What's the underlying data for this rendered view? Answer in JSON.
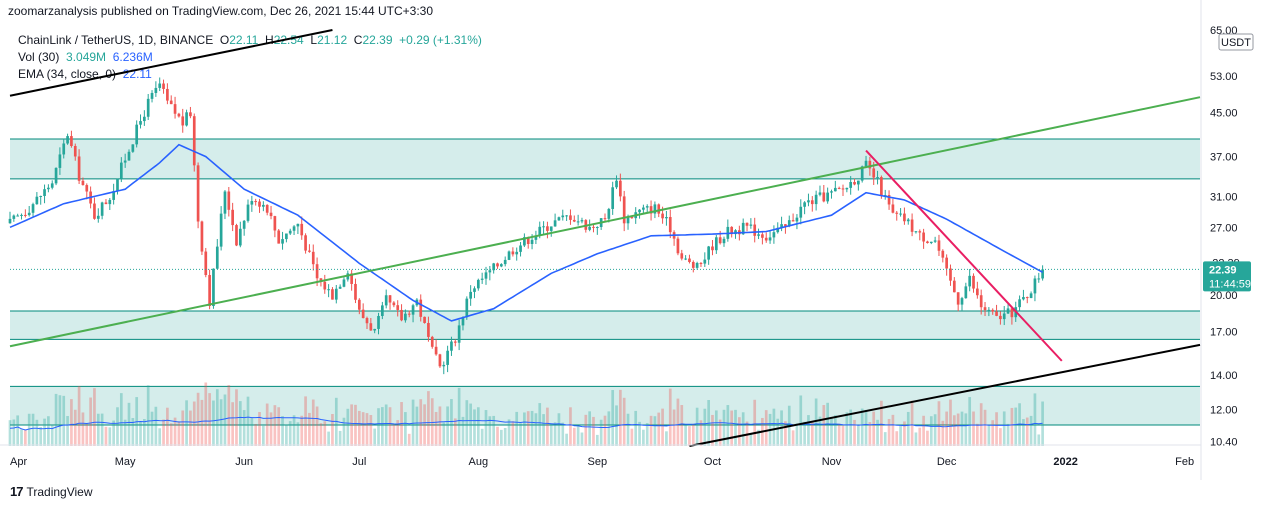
{
  "header": {
    "published_line": "zoomarzanalysis published on TradingView.com, Dec 26, 2021 15:44 UTC+3:30"
  },
  "legend": {
    "symbol_line": "ChainLink / TetherUS, 1D, BINANCE",
    "open_label": "O",
    "open": "22.11",
    "high_label": "H",
    "high": "22.54",
    "low_label": "L",
    "low": "21.12",
    "close_label": "C",
    "close": "22.39",
    "change": "+0.29 (+1.31%)",
    "vol_label": "Vol (30)",
    "vol_value1": "3.049M",
    "vol_value2": "6.236M",
    "ema_label": "EMA (34, close, 0)",
    "ema_value": "22.11"
  },
  "price_axis": {
    "currency": "USDT",
    "last_price": "22.39",
    "countdown": "11:44:59",
    "hidden_label": "22.39"
  },
  "footer": {
    "brand": "TradingView"
  },
  "colors": {
    "up": "#26a69a",
    "down": "#ef5350",
    "ema": "#2962ff",
    "zone_fill": "#b2dfdb",
    "zone_edge": "#00897b",
    "green_trend": "#4caf50",
    "red_trend": "#e91e63",
    "black_trend": "#000000"
  },
  "chart_data": {
    "type": "candlestick",
    "y_scale": "log",
    "y_range": [
      10.2,
      65
    ],
    "y_ticks": [
      10.4,
      12.0,
      14.0,
      17.0,
      20.0,
      27.0,
      31.0,
      37.0,
      45.0,
      53.0,
      65.0
    ],
    "y_tick_labels": [
      "10.40",
      "12.00",
      "14.00",
      "17.00",
      "20.00",
      "27.00",
      "31.00",
      "37.00",
      "45.00",
      "53.00",
      "65.00"
    ],
    "x_start": "2021-04-01",
    "x_end": "2022-02-05",
    "x_ticks": [
      {
        "date": "2021-04-01",
        "label": "Apr"
      },
      {
        "date": "2021-05-01",
        "label": "May"
      },
      {
        "date": "2021-06-01",
        "label": "Jun"
      },
      {
        "date": "2021-07-01",
        "label": "Jul"
      },
      {
        "date": "2021-08-01",
        "label": "Aug"
      },
      {
        "date": "2021-09-01",
        "label": "Sep"
      },
      {
        "date": "2021-10-01",
        "label": "Oct"
      },
      {
        "date": "2021-11-01",
        "label": "Nov"
      },
      {
        "date": "2021-12-01",
        "label": "Dec"
      },
      {
        "date": "2022-01-01",
        "label": "2022"
      },
      {
        "date": "2022-02-01",
        "label": "Feb"
      }
    ],
    "last_price": 22.39,
    "price_anchors": [
      [
        "2021-04-01",
        27.5
      ],
      [
        "2021-04-06",
        29.5
      ],
      [
        "2021-04-12",
        33
      ],
      [
        "2021-04-16",
        41
      ],
      [
        "2021-04-19",
        34
      ],
      [
        "2021-04-23",
        28.5
      ],
      [
        "2021-04-27",
        31
      ],
      [
        "2021-05-03",
        40
      ],
      [
        "2021-05-07",
        47
      ],
      [
        "2021-05-10",
        51
      ],
      [
        "2021-05-12",
        47
      ],
      [
        "2021-05-16",
        43
      ],
      [
        "2021-05-18",
        45
      ],
      [
        "2021-05-20",
        28
      ],
      [
        "2021-05-23",
        19.5
      ],
      [
        "2021-05-27",
        32
      ],
      [
        "2021-05-30",
        25.5
      ],
      [
        "2021-06-03",
        31
      ],
      [
        "2021-06-07",
        29.5
      ],
      [
        "2021-06-10",
        25.5
      ],
      [
        "2021-06-15",
        27.5
      ],
      [
        "2021-06-20",
        21.5
      ],
      [
        "2021-06-24",
        20
      ],
      [
        "2021-06-28",
        22.5
      ],
      [
        "2021-07-01",
        18.5
      ],
      [
        "2021-07-05",
        17
      ],
      [
        "2021-07-08",
        19.5
      ],
      [
        "2021-07-12",
        18
      ],
      [
        "2021-07-16",
        19.5
      ],
      [
        "2021-07-20",
        15.5
      ],
      [
        "2021-07-22",
        14.5
      ],
      [
        "2021-07-26",
        16.5
      ],
      [
        "2021-07-30",
        20.5
      ],
      [
        "2021-08-05",
        22.5
      ],
      [
        "2021-08-10",
        24.5
      ],
      [
        "2021-08-15",
        26
      ],
      [
        "2021-08-20",
        27.5
      ],
      [
        "2021-08-25",
        28.5
      ],
      [
        "2021-08-30",
        27
      ],
      [
        "2021-09-03",
        28
      ],
      [
        "2021-09-06",
        34
      ],
      [
        "2021-09-08",
        28
      ],
      [
        "2021-09-12",
        29
      ],
      [
        "2021-09-16",
        29.5
      ],
      [
        "2021-09-20",
        27
      ],
      [
        "2021-09-23",
        23.5
      ],
      [
        "2021-09-27",
        22.5
      ],
      [
        "2021-10-01",
        25
      ],
      [
        "2021-10-05",
        26.5
      ],
      [
        "2021-10-10",
        27
      ],
      [
        "2021-10-15",
        26
      ],
      [
        "2021-10-20",
        27
      ],
      [
        "2021-10-25",
        30
      ],
      [
        "2021-10-30",
        31
      ],
      [
        "2021-11-04",
        32
      ],
      [
        "2021-11-08",
        34
      ],
      [
        "2021-11-10",
        35.5
      ],
      [
        "2021-11-13",
        33
      ],
      [
        "2021-11-17",
        28.5
      ],
      [
        "2021-11-20",
        28
      ],
      [
        "2021-11-24",
        26
      ],
      [
        "2021-11-28",
        25.5
      ],
      [
        "2021-12-01",
        22
      ],
      [
        "2021-12-04",
        19.5
      ],
      [
        "2021-12-07",
        21.5
      ],
      [
        "2021-12-10",
        19
      ],
      [
        "2021-12-14",
        18
      ],
      [
        "2021-12-18",
        18.5
      ],
      [
        "2021-12-22",
        20
      ],
      [
        "2021-12-26",
        22.39
      ]
    ],
    "ema_anchors": [
      [
        "2021-04-01",
        27
      ],
      [
        "2021-04-15",
        30
      ],
      [
        "2021-05-01",
        32
      ],
      [
        "2021-05-10",
        36
      ],
      [
        "2021-05-15",
        39
      ],
      [
        "2021-05-22",
        37
      ],
      [
        "2021-06-01",
        32
      ],
      [
        "2021-06-15",
        28.5
      ],
      [
        "2021-07-01",
        23
      ],
      [
        "2021-07-15",
        19.5
      ],
      [
        "2021-07-25",
        17.8
      ],
      [
        "2021-08-05",
        18.8
      ],
      [
        "2021-08-20",
        22
      ],
      [
        "2021-09-01",
        24
      ],
      [
        "2021-09-15",
        26
      ],
      [
        "2021-10-01",
        26.2
      ],
      [
        "2021-10-15",
        26.5
      ],
      [
        "2021-11-01",
        28.5
      ],
      [
        "2021-11-10",
        31.5
      ],
      [
        "2021-11-20",
        30.5
      ],
      [
        "2021-12-01",
        28
      ],
      [
        "2021-12-15",
        24.5
      ],
      [
        "2021-12-26",
        22.1
      ]
    ],
    "zones": [
      {
        "top": 40,
        "bottom": 33.5
      },
      {
        "top": 18.6,
        "bottom": 16.4
      },
      {
        "top": 13.3,
        "bottom": 11.2
      }
    ],
    "trendlines": [
      {
        "name": "black-upper",
        "color": "#000000",
        "points": [
          [
            "2021-04-01",
            48.5
          ],
          [
            "2021-06-24",
            65
          ]
        ]
      },
      {
        "name": "green",
        "color": "#4caf50",
        "points": [
          [
            "2021-04-01",
            15.9
          ],
          [
            "2022-02-05",
            48.2
          ]
        ]
      },
      {
        "name": "red",
        "color": "#e91e63",
        "points": [
          [
            "2021-11-10",
            38
          ],
          [
            "2021-12-31",
            14.9
          ]
        ]
      },
      {
        "name": "black-lower",
        "color": "#000000",
        "points": [
          [
            "2021-09-25",
            10.2
          ],
          [
            "2022-02-05",
            16
          ]
        ]
      }
    ],
    "volume_max": 1
  }
}
